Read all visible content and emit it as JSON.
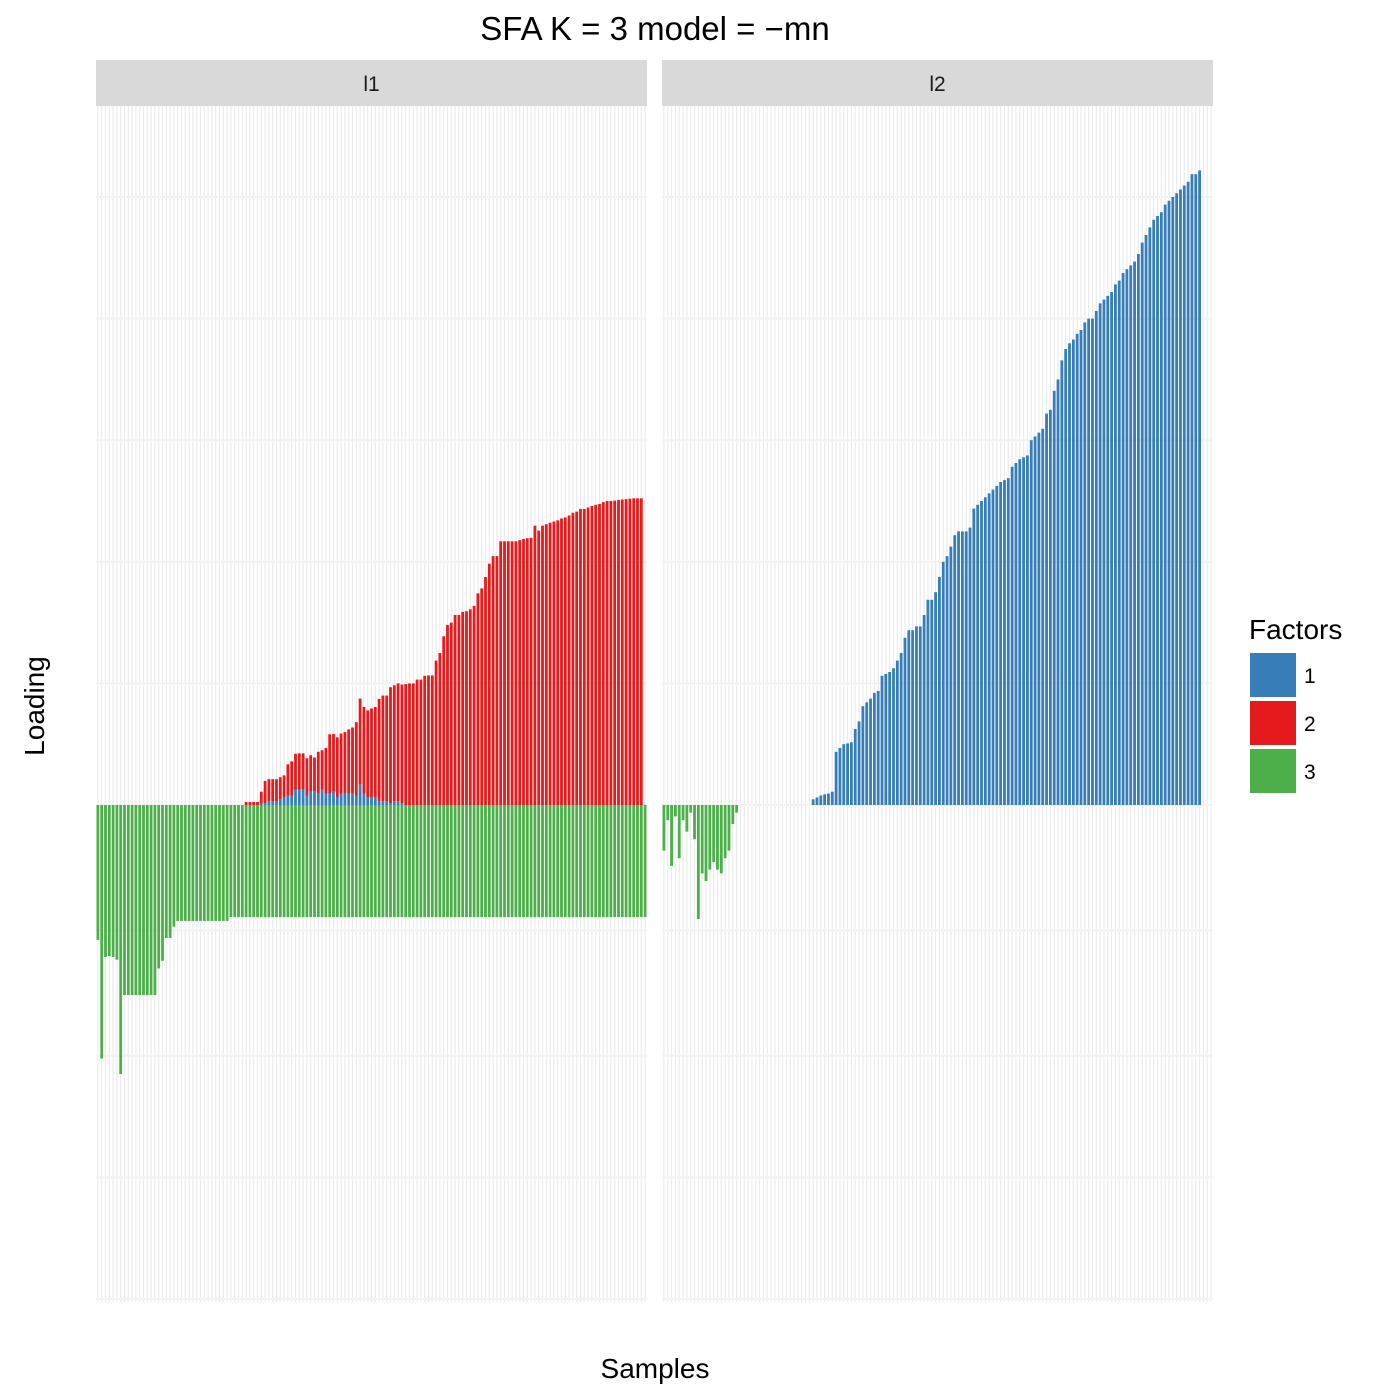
{
  "chart_data": {
    "type": "bar",
    "title": "SFA K = 3 model =  −mn",
    "xlabel": "Samples",
    "ylabel": "Loading",
    "ylim": [
      -1.0,
      1.0
    ],
    "grid": true,
    "legend": {
      "title": "Factors",
      "placement": "right",
      "entries": [
        {
          "label": "1",
          "color": "#377EB8"
        },
        {
          "label": "2",
          "color": "#E41A1C"
        },
        {
          "label": "3",
          "color": "#4DAF4A"
        }
      ]
    },
    "series": [
      {
        "name": "1",
        "color": "#377EB8"
      },
      {
        "name": "2",
        "color": "#E41A1C"
      },
      {
        "name": "3",
        "color": "#4DAF4A"
      }
    ],
    "panels": [
      {
        "label": "l1",
        "factor1_pos": [
          0,
          0,
          0,
          0,
          0,
          0,
          0,
          0,
          0,
          0,
          0,
          0,
          0,
          0,
          0,
          0,
          0,
          0,
          0,
          0,
          0,
          0,
          0,
          0,
          0,
          0,
          0,
          0,
          0,
          0,
          0,
          0,
          0,
          0,
          0,
          0,
          0,
          0,
          0,
          0,
          0,
          0,
          0,
          0.005,
          0.005,
          0.01,
          0.01,
          0.01,
          0.015,
          0.02,
          0.025,
          0.025,
          0.04,
          0.04,
          0.04,
          0.025,
          0.035,
          0.035,
          0.03,
          0.04,
          0.03,
          0.03,
          0.035,
          0.02,
          0.03,
          0.03,
          0.03,
          0.03,
          0.025,
          0.055,
          0.03,
          0.02,
          0.02,
          0.02,
          0.01,
          0.01,
          0.01,
          0.005,
          0.01,
          0.01,
          0.005,
          0,
          0,
          0,
          0,
          0,
          0,
          0,
          0,
          0,
          0,
          0,
          0,
          0,
          0,
          0,
          0,
          0,
          0,
          0,
          0,
          0,
          0,
          0,
          0,
          0,
          0,
          0,
          0,
          0,
          0,
          0,
          0,
          0,
          0,
          0,
          0,
          0,
          0,
          0,
          0,
          0,
          0,
          0,
          0,
          0,
          0,
          0,
          0,
          0,
          0,
          0,
          0,
          0,
          0,
          0,
          0,
          0,
          0,
          0,
          0,
          0,
          0
        ],
        "factor2": [
          0,
          0,
          0,
          0,
          0,
          0,
          0,
          0,
          0,
          0,
          0,
          0,
          0,
          0,
          0,
          0,
          0,
          0,
          0,
          0,
          0,
          0,
          0,
          0,
          0,
          0,
          0,
          0,
          0,
          0,
          0,
          0,
          0,
          0,
          0,
          0,
          0,
          0,
          0,
          0.008,
          0.008,
          0.008,
          0.008,
          0.03,
          0.058,
          0.058,
          0.058,
          0.058,
          0.058,
          0.058,
          0.082,
          0.09,
          0.095,
          0.096,
          0.096,
          0.098,
          0.096,
          0.09,
          0.11,
          0.104,
          0.12,
          0.156,
          0.152,
          0.158,
          0.158,
          0.162,
          0.169,
          0.174,
          0.193,
          0.225,
          0.228,
          0.229,
          0.234,
          0.238,
          0.269,
          0.278,
          0.278,
          0.305,
          0.305,
          0.31,
          0.312,
          0.318,
          0.32,
          0.32,
          0.33,
          0.33,
          0.34,
          0.341,
          0.341,
          0.38,
          0.4,
          0.444,
          0.474,
          0.48,
          0.5,
          0.5,
          0.508,
          0.51,
          0.515,
          0.524,
          0.557,
          0.57,
          0.6,
          0.635,
          0.655,
          0.655,
          0.694,
          0.694,
          0.694,
          0.694,
          0.694,
          0.697,
          0.7,
          0.702,
          0.703,
          0.735,
          0.722,
          0.735,
          0.739,
          0.743,
          0.746,
          0.749,
          0.754,
          0.757,
          0.762,
          0.769,
          0.772,
          0.779,
          0.779,
          0.783,
          0.787,
          0.79,
          0.792,
          0.797,
          0.8,
          0.8,
          0.801,
          0.803,
          0.804,
          0.805,
          0.806,
          0.807,
          0.807,
          0.807
        ],
        "factor3": [
          -0.355,
          -0.667,
          -0.4,
          -0.398,
          -0.4,
          -0.407,
          -0.708,
          -0.5,
          -0.5,
          -0.5,
          -0.5,
          -0.5,
          -0.5,
          -0.5,
          -0.5,
          -0.5,
          -0.43,
          -0.41,
          -0.35,
          -0.35,
          -0.32,
          -0.305,
          -0.305,
          -0.305,
          -0.305,
          -0.305,
          -0.305,
          -0.305,
          -0.305,
          -0.305,
          -0.305,
          -0.305,
          -0.305,
          -0.305,
          -0.305,
          -0.295,
          -0.295,
          -0.295,
          -0.295,
          -0.295,
          -0.295,
          -0.295,
          -0.295,
          -0.295,
          -0.295,
          -0.295,
          -0.295,
          -0.295,
          -0.295,
          -0.295,
          -0.295,
          -0.295,
          -0.295,
          -0.295,
          -0.295,
          -0.295,
          -0.295,
          -0.295,
          -0.295,
          -0.295,
          -0.295,
          -0.295,
          -0.295,
          -0.295,
          -0.295,
          -0.295,
          -0.295,
          -0.295,
          -0.295,
          -0.295,
          -0.295,
          -0.295,
          -0.295,
          -0.295,
          -0.295,
          -0.295,
          -0.295,
          -0.295,
          -0.295,
          -0.295,
          -0.295,
          -0.295,
          -0.295,
          -0.295,
          -0.295,
          -0.295,
          -0.295,
          -0.295,
          -0.295,
          -0.295,
          -0.295,
          -0.295,
          -0.295,
          -0.295,
          -0.295,
          -0.295,
          -0.295,
          -0.295,
          -0.295,
          -0.295,
          -0.295,
          -0.295,
          -0.295,
          -0.295,
          -0.295,
          -0.295,
          -0.295,
          -0.295,
          -0.295,
          -0.295,
          -0.295,
          -0.295,
          -0.295,
          -0.295,
          -0.295,
          -0.295,
          -0.295,
          -0.295,
          -0.295,
          -0.295,
          -0.295,
          -0.295,
          -0.295,
          -0.295,
          -0.295,
          -0.295,
          -0.295,
          -0.295,
          -0.295,
          -0.295,
          -0.295,
          -0.295,
          -0.295,
          -0.295,
          -0.295,
          -0.295,
          -0.295,
          -0.295,
          -0.295,
          -0.295,
          -0.295,
          -0.295,
          -0.295,
          -0.295,
          -0.295
        ],
        "factor1_neg_end": [
          0,
          0,
          0,
          0,
          0,
          0,
          0,
          0,
          0,
          0,
          0,
          0,
          0,
          0,
          0,
          0,
          0,
          0,
          0,
          0,
          0,
          0,
          0,
          0,
          0,
          0,
          0,
          0,
          0,
          0,
          0,
          0,
          0,
          0,
          0,
          0,
          0,
          0,
          0,
          0,
          0,
          0,
          0,
          0,
          0,
          0,
          0,
          0,
          0,
          0,
          0,
          0,
          0,
          0,
          0,
          0,
          0,
          0,
          0,
          0,
          0,
          0,
          0,
          0,
          0,
          0,
          0,
          0,
          0,
          0,
          0,
          0,
          0,
          0,
          0,
          0,
          0,
          0,
          0,
          0,
          0,
          0,
          0,
          0,
          0,
          0,
          0,
          0,
          0,
          0,
          0,
          0,
          0,
          0,
          0,
          0,
          0,
          0,
          0,
          0,
          0,
          0,
          0,
          0,
          0,
          0,
          0,
          0,
          0,
          0,
          0,
          0,
          0,
          0,
          0,
          0,
          0,
          0,
          0,
          0,
          0,
          0,
          0,
          0,
          0,
          0,
          0,
          0,
          0,
          0,
          0,
          0,
          0,
          0,
          0,
          0,
          0,
          0,
          0,
          0,
          0,
          0,
          0,
          -0.01
        ]
      },
      {
        "label": "l2",
        "factor1_pos": [
          0,
          0,
          0,
          0,
          0,
          0,
          0,
          0,
          0,
          0,
          0,
          0,
          0,
          0,
          0,
          0,
          0,
          0,
          0,
          0,
          0,
          0,
          0,
          0,
          0,
          0,
          0,
          0,
          0,
          0,
          0,
          0,
          0,
          0,
          0,
          0,
          0,
          0,
          0,
          0.015,
          0.02,
          0.025,
          0.028,
          0.03,
          0.035,
          0.14,
          0.15,
          0.16,
          0.162,
          0.165,
          0.2,
          0.22,
          0.26,
          0.27,
          0.28,
          0.295,
          0.3,
          0.34,
          0.345,
          0.35,
          0.36,
          0.38,
          0.4,
          0.44,
          0.46,
          0.46,
          0.47,
          0.47,
          0.5,
          0.54,
          0.54,
          0.56,
          0.6,
          0.64,
          0.655,
          0.68,
          0.71,
          0.72,
          0.72,
          0.72,
          0.73,
          0.78,
          0.79,
          0.8,
          0.81,
          0.82,
          0.83,
          0.84,
          0.85,
          0.855,
          0.86,
          0.89,
          0.9,
          0.91,
          0.915,
          0.92,
          0.96,
          0.97,
          0.98,
          0.99,
          1.03,
          1.04,
          1.09,
          1.12,
          1.17,
          1.2,
          1.215,
          1.225,
          1.24,
          1.25,
          1.27,
          1.28,
          1.28,
          1.3,
          1.32,
          1.33,
          1.34,
          1.35,
          1.37,
          1.38,
          1.4,
          1.41,
          1.42,
          1.43,
          1.45,
          1.48,
          1.5,
          1.52,
          1.54,
          1.55,
          1.56,
          1.58,
          1.59,
          1.6,
          1.61,
          1.62,
          1.63,
          1.64,
          1.66,
          1.66,
          1.67
        ],
        "factor3": [
          -0.12,
          -0.04,
          -0.16,
          -0.03,
          -0.14,
          -0.04,
          -0.07,
          -0.02,
          -0.09,
          -0.3,
          -0.18,
          -0.2,
          -0.17,
          -0.15,
          -0.17,
          -0.18,
          -0.14,
          -0.12,
          -0.05,
          -0.02,
          0,
          0,
          0,
          0,
          0,
          0,
          0,
          0,
          0,
          0,
          0,
          0,
          0,
          0,
          0,
          0,
          0,
          0,
          0,
          0,
          0,
          0,
          0,
          0,
          0,
          0,
          0,
          0,
          0,
          0,
          0,
          0,
          0,
          0,
          0,
          0,
          0,
          0,
          0,
          0,
          0,
          0,
          0,
          0,
          0,
          0,
          0,
          0,
          0,
          0,
          0,
          0,
          0,
          0,
          0,
          0,
          0,
          0,
          0,
          0,
          0,
          0,
          0,
          0,
          0,
          0,
          0,
          0,
          0,
          0,
          0,
          0,
          0,
          0,
          0,
          0,
          0,
          0,
          0,
          0,
          0,
          0,
          0,
          0,
          0,
          0,
          0,
          0,
          0,
          0,
          0,
          0,
          0,
          0,
          0,
          0,
          0,
          0,
          0,
          0,
          0,
          0,
          0,
          0,
          0,
          0,
          0,
          0,
          0,
          0,
          0,
          0,
          0,
          0,
          0,
          0,
          0,
          0,
          0,
          0,
          0,
          0,
          0,
          0
        ]
      }
    ]
  }
}
